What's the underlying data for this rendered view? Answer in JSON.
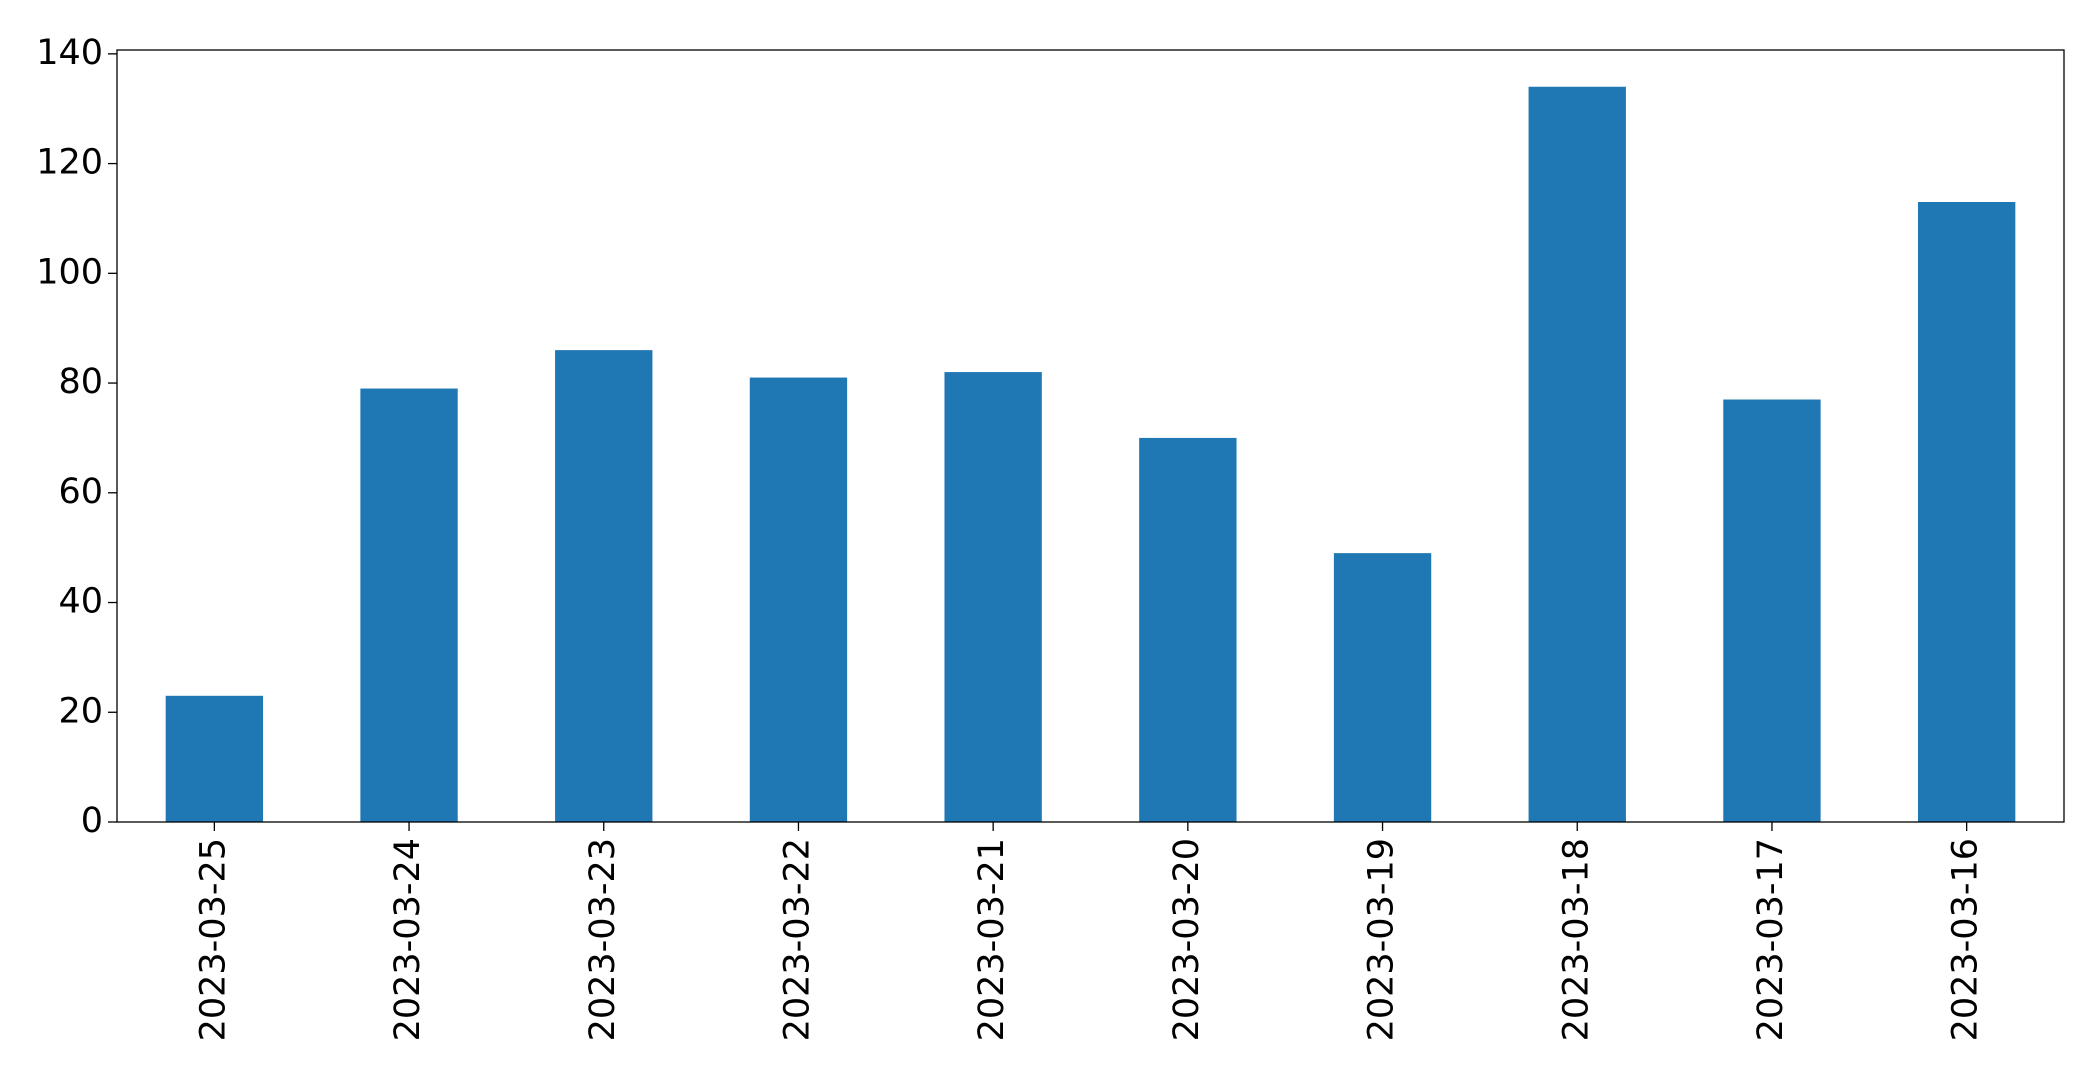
{
  "chart_data": {
    "type": "bar",
    "categories": [
      "2023-03-25",
      "2023-03-24",
      "2023-03-23",
      "2023-03-22",
      "2023-03-21",
      "2023-03-20",
      "2023-03-19",
      "2023-03-18",
      "2023-03-17",
      "2023-03-16"
    ],
    "values": [
      23,
      79,
      86,
      81,
      82,
      70,
      49,
      134,
      77,
      113
    ],
    "color": "#1f77b4",
    "ylim": [
      0,
      140.7
    ],
    "yticks": [
      0,
      20,
      40,
      60,
      80,
      100,
      120,
      140
    ],
    "grid": false
  }
}
